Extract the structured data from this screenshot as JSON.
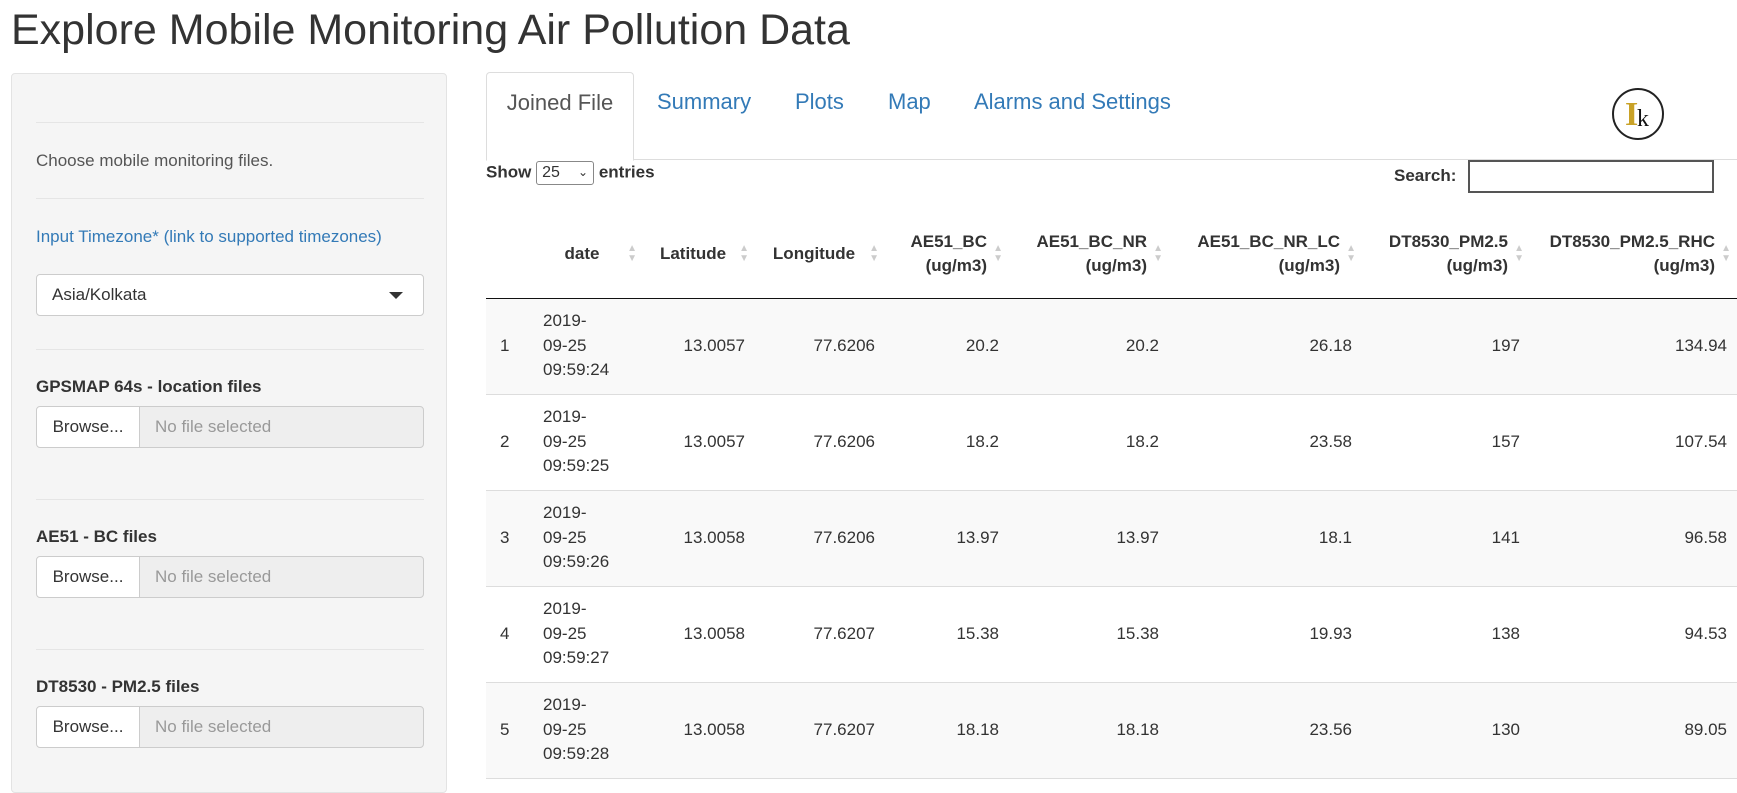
{
  "page_title": "Explore Mobile Monitoring Air Pollution Data",
  "sidebar": {
    "intro": "Choose mobile monitoring files.",
    "timezone_link": "Input Timezone* (link to supported timezones)",
    "timezone_value": "Asia/Kolkata",
    "file_inputs": [
      {
        "label": "GPSMAP 64s - location files",
        "button": "Browse...",
        "status": "No file selected"
      },
      {
        "label": "AE51 - BC files",
        "button": "Browse...",
        "status": "No file selected"
      },
      {
        "label": "DT8530 - PM2.5 files",
        "button": "Browse...",
        "status": "No file selected"
      }
    ]
  },
  "tabs": [
    "Joined File",
    "Summary",
    "Plots",
    "Map",
    "Alarms and Settings"
  ],
  "active_tab": "Joined File",
  "table_controls": {
    "show_label": "Show",
    "entries_value": "25",
    "entries_label": "entries",
    "search_label": "Search:"
  },
  "table": {
    "columns": [
      [
        "",
        ""
      ],
      [
        "date",
        ""
      ],
      [
        "Latitude",
        ""
      ],
      [
        "Longitude",
        ""
      ],
      [
        "AE51_BC",
        "(ug/m3)"
      ],
      [
        "AE51_BC_NR",
        "(ug/m3)"
      ],
      [
        "AE51_BC_NR_LC",
        "(ug/m3)"
      ],
      [
        "DT8530_PM2.5",
        "(ug/m3)"
      ],
      [
        "DT8530_PM2.5_RHC",
        "(ug/m3)"
      ]
    ],
    "rows": [
      [
        "1",
        [
          "2019-",
          "09-25",
          "09:59:24"
        ],
        "13.0057",
        "77.6206",
        "20.2",
        "20.2",
        "26.18",
        "197",
        "134.94"
      ],
      [
        "2",
        [
          "2019-",
          "09-25",
          "09:59:25"
        ],
        "13.0057",
        "77.6206",
        "18.2",
        "18.2",
        "23.58",
        "157",
        "107.54"
      ],
      [
        "3",
        [
          "2019-",
          "09-25",
          "09:59:26"
        ],
        "13.0058",
        "77.6206",
        "13.97",
        "13.97",
        "18.1",
        "141",
        "96.58"
      ],
      [
        "4",
        [
          "2019-",
          "09-25",
          "09:59:27"
        ],
        "13.0058",
        "77.6207",
        "15.38",
        "15.38",
        "19.93",
        "138",
        "94.53"
      ],
      [
        "5",
        [
          "2019-",
          "09-25",
          "09:59:28"
        ],
        "13.0058",
        "77.6207",
        "18.18",
        "18.18",
        "23.56",
        "130",
        "89.05"
      ]
    ]
  }
}
